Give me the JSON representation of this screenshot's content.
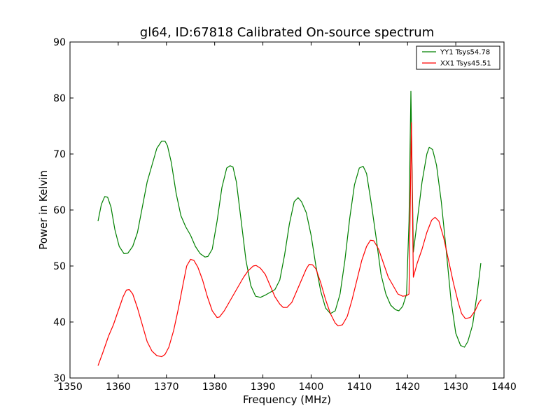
{
  "chart_data": {
    "type": "line",
    "title": "gl64, ID:67818 Calibrated On-source spectrum",
    "xlabel": "Frequency (MHz)",
    "ylabel": "Power in Kelvin",
    "xlim": [
      1350,
      1440
    ],
    "ylim": [
      30,
      90
    ],
    "xticks": [
      1350,
      1360,
      1370,
      1380,
      1390,
      1400,
      1410,
      1420,
      1430,
      1440
    ],
    "yticks": [
      30,
      40,
      50,
      60,
      70,
      80,
      90
    ],
    "grid": false,
    "legend_position": "top-right",
    "series": [
      {
        "name": "YY1 Tsys54.78",
        "color": "#008000",
        "x": [
          1355.8,
          1356.5,
          1357.2,
          1357.8,
          1358.5,
          1359.3,
          1360.2,
          1361.2,
          1362.0,
          1363.0,
          1364.0,
          1365.0,
          1366.0,
          1367.0,
          1368.0,
          1369.0,
          1369.7,
          1370.2,
          1371.0,
          1372.0,
          1373.0,
          1374.0,
          1375.0,
          1376.0,
          1377.0,
          1378.0,
          1378.6,
          1379.5,
          1380.5,
          1381.5,
          1382.5,
          1383.2,
          1383.8,
          1384.5,
          1385.5,
          1386.5,
          1387.5,
          1388.5,
          1389.5,
          1390.5,
          1391.5,
          1392.5,
          1393.5,
          1394.5,
          1395.5,
          1396.5,
          1397.3,
          1398.0,
          1399.0,
          1400.0,
          1401.0,
          1402.0,
          1403.0,
          1404.0,
          1405.0,
          1406.0,
          1407.0,
          1408.0,
          1409.0,
          1410.0,
          1410.8,
          1411.5,
          1412.5,
          1413.5,
          1414.5,
          1415.5,
          1416.5,
          1417.5,
          1418.2,
          1419.0,
          1419.8,
          1420.3,
          1420.7,
          1421.2,
          1422.0,
          1423.0,
          1424.0,
          1424.5,
          1425.2,
          1426.0,
          1427.0,
          1428.0,
          1429.0,
          1430.0,
          1431.0,
          1431.8,
          1432.5,
          1433.5,
          1434.5,
          1435.2
        ],
        "y": [
          58.0,
          61.0,
          62.4,
          62.3,
          60.5,
          56.5,
          53.5,
          52.2,
          52.3,
          53.5,
          56.0,
          60.5,
          65.0,
          68.0,
          71.0,
          72.3,
          72.3,
          71.5,
          68.5,
          63.0,
          59.0,
          57.0,
          55.5,
          53.5,
          52.2,
          51.6,
          51.7,
          53.0,
          58.0,
          64.0,
          67.5,
          67.9,
          67.7,
          65.0,
          58.0,
          51.0,
          46.5,
          44.6,
          44.4,
          44.8,
          45.3,
          45.8,
          47.5,
          52.0,
          57.5,
          61.5,
          62.2,
          61.5,
          59.5,
          55.5,
          50.0,
          45.5,
          42.5,
          41.5,
          42.0,
          45.0,
          51.0,
          58.5,
          64.5,
          67.5,
          67.8,
          66.5,
          61.0,
          55.0,
          48.5,
          45.0,
          43.0,
          42.2,
          42.0,
          42.8,
          45.0,
          58.0,
          81.2,
          52.5,
          58.0,
          65.0,
          70.0,
          71.2,
          70.8,
          68.0,
          61.5,
          53.0,
          44.0,
          38.0,
          35.8,
          35.5,
          36.5,
          39.5,
          45.5,
          50.5
        ]
      },
      {
        "name": "XX1 Tsys45.51",
        "color": "#ff0000",
        "x": [
          1355.8,
          1356.8,
          1358.0,
          1359.0,
          1360.0,
          1361.0,
          1361.7,
          1362.3,
          1363.0,
          1364.0,
          1365.0,
          1366.0,
          1367.0,
          1368.0,
          1369.0,
          1369.7,
          1370.5,
          1371.5,
          1372.5,
          1373.5,
          1374.2,
          1375.0,
          1375.7,
          1376.5,
          1377.5,
          1378.5,
          1379.5,
          1380.5,
          1381.0,
          1382.0,
          1383.0,
          1384.0,
          1385.0,
          1386.0,
          1387.0,
          1388.0,
          1388.6,
          1389.5,
          1390.5,
          1391.5,
          1392.5,
          1393.5,
          1394.2,
          1395.0,
          1396.0,
          1397.0,
          1398.0,
          1399.0,
          1399.6,
          1400.3,
          1401.0,
          1402.0,
          1403.0,
          1404.0,
          1405.0,
          1405.6,
          1406.5,
          1407.5,
          1408.5,
          1409.5,
          1410.5,
          1411.5,
          1412.3,
          1413.0,
          1414.0,
          1415.0,
          1416.0,
          1417.0,
          1418.0,
          1419.0,
          1419.8,
          1420.3,
          1420.8,
          1421.2,
          1422.0,
          1423.0,
          1424.0,
          1425.0,
          1425.7,
          1426.5,
          1427.5,
          1428.5,
          1429.5,
          1430.5,
          1431.2,
          1432.0,
          1433.0,
          1434.0,
          1434.8,
          1435.3
        ],
        "y": [
          32.2,
          34.5,
          37.5,
          39.5,
          42.0,
          44.5,
          45.7,
          45.8,
          45.0,
          42.5,
          39.5,
          36.5,
          34.8,
          34.0,
          33.8,
          34.2,
          35.5,
          38.5,
          42.5,
          47.0,
          50.0,
          51.2,
          51.0,
          49.8,
          47.5,
          44.5,
          42.0,
          40.8,
          40.9,
          42.0,
          43.5,
          45.0,
          46.5,
          48.0,
          49.2,
          50.0,
          50.1,
          49.6,
          48.5,
          46.5,
          44.5,
          43.2,
          42.6,
          42.6,
          43.5,
          45.5,
          47.5,
          49.5,
          50.3,
          50.2,
          49.5,
          47.0,
          44.0,
          41.5,
          39.8,
          39.3,
          39.5,
          41.0,
          44.0,
          47.5,
          51.0,
          53.5,
          54.6,
          54.5,
          53.0,
          50.5,
          48.0,
          46.5,
          45.0,
          44.6,
          44.7,
          45.0,
          75.6,
          48.0,
          50.5,
          53.0,
          56.0,
          58.2,
          58.7,
          58.0,
          55.0,
          51.0,
          47.0,
          43.5,
          41.5,
          40.6,
          40.8,
          42.0,
          43.5,
          44.0
        ]
      }
    ]
  }
}
